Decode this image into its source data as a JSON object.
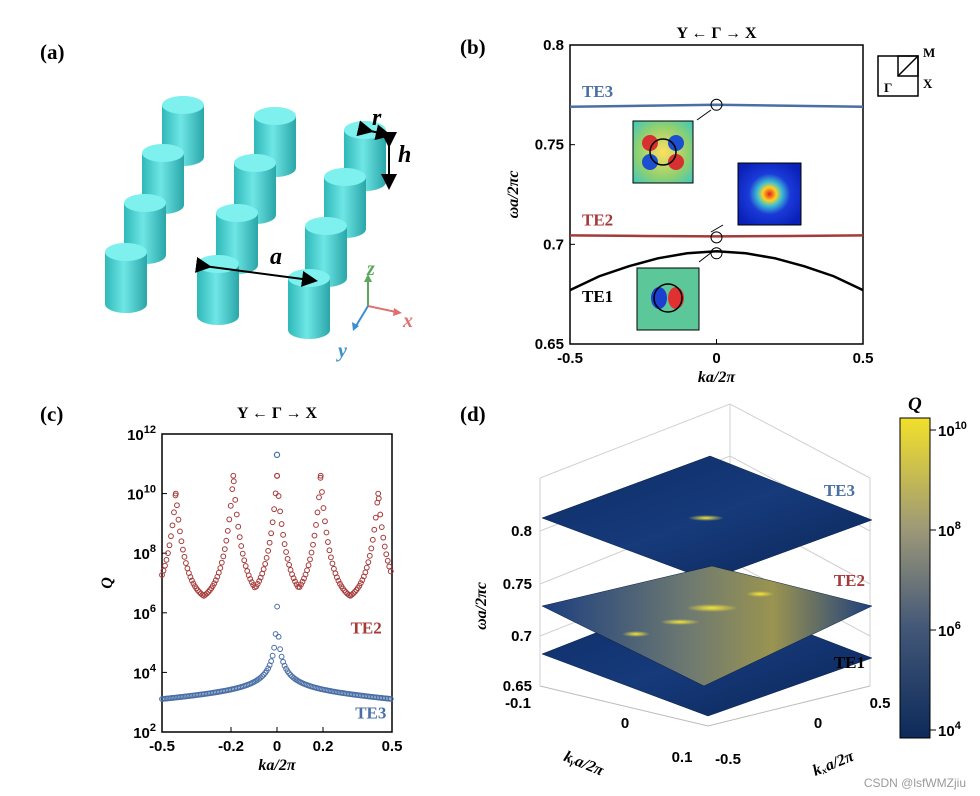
{
  "panels": {
    "a": {
      "label": "(a)",
      "lattice_labels": {
        "r": "r",
        "h": "h",
        "a": "a",
        "x": "x",
        "y": "y",
        "z": "z"
      }
    },
    "b": {
      "label": "(b)"
    },
    "c": {
      "label": "(c)"
    },
    "d": {
      "label": "(d)"
    }
  },
  "bz_inset": {
    "M": "M",
    "X": "X",
    "Gamma": "Γ"
  },
  "watermark": "CSDN @lsfWMZjiu",
  "chart_data": [
    {
      "id": "b",
      "type": "line",
      "title": "Y ← Γ → X",
      "xlabel": "ka/2π",
      "ylabel": "ωa/2πc",
      "xlim": [
        -0.5,
        0.5
      ],
      "ylim": [
        0.65,
        0.8
      ],
      "xticks": [
        "-0.5",
        "0",
        "0.5"
      ],
      "yticks": [
        "0.65",
        "0.7",
        "0.75",
        "0.8"
      ],
      "series": [
        {
          "name": "TE3",
          "color": "#4a6fa5",
          "x": [
            -0.5,
            -0.25,
            0,
            0.25,
            0.5
          ],
          "y": [
            0.769,
            0.7695,
            0.77,
            0.7695,
            0.769
          ]
        },
        {
          "name": "TE2",
          "color": "#a53a3a",
          "x": [
            -0.5,
            -0.25,
            0,
            0.25,
            0.5
          ],
          "y": [
            0.7045,
            0.7042,
            0.704,
            0.7042,
            0.7045
          ]
        },
        {
          "name": "TE1",
          "color": "#000000",
          "x": [
            -0.5,
            -0.4,
            -0.3,
            -0.2,
            -0.1,
            0,
            0.1,
            0.2,
            0.3,
            0.4,
            0.5
          ],
          "y": [
            0.677,
            0.684,
            0.689,
            0.693,
            0.6955,
            0.6965,
            0.6955,
            0.693,
            0.689,
            0.684,
            0.677
          ]
        }
      ],
      "markers_at_gamma": [
        0.77,
        0.7035,
        0.6955
      ],
      "mode_insets": [
        "TE3",
        "TE2",
        "TE1"
      ]
    },
    {
      "id": "c",
      "type": "scatter",
      "title": "Y ← Γ → X",
      "xlabel": "ka/2π",
      "ylabel": "Q",
      "xlim": [
        -0.5,
        0.5
      ],
      "ylim_log10": [
        2,
        12
      ],
      "xticks": [
        "-0.5",
        "-0.2",
        "0",
        "0.2",
        "0.5"
      ],
      "yticks_log10": [
        2,
        4,
        6,
        8,
        10,
        12
      ],
      "ytick_base": "10",
      "series": [
        {
          "name": "TE2",
          "color": "#a53a3a",
          "peaks_k": [
            -0.44,
            -0.19,
            0,
            0.19,
            0.44
          ],
          "peaks_log10Q": [
            10,
            10.6,
            10.6,
            10.6,
            10
          ],
          "floor_log10Q": 6.3
        },
        {
          "name": "TE3",
          "color": "#4a6fa5",
          "peak_k": 0,
          "peak_log10Q": 11.3,
          "floor_log10Q": 3
        }
      ]
    },
    {
      "id": "d",
      "type": "heatmap",
      "title": "",
      "zlabel": "ωa/2πc",
      "xlabel": "kₓa/2π",
      "ylabel": "kᵧa/2π",
      "zticks": [
        "0.65",
        "0.7",
        "0.75",
        "0.8"
      ],
      "xticks": [
        "-0.5",
        "0",
        "0.5"
      ],
      "yticks": [
        "-0.1",
        "0",
        "0.1"
      ],
      "surfaces": [
        "TE3",
        "TE2",
        "TE1"
      ],
      "colorbar": {
        "label": "Q",
        "ticks_log10": [
          4,
          6,
          8,
          10
        ],
        "base": "10",
        "low_color": "#0c2a5a",
        "high_color": "#f2e02a"
      }
    }
  ]
}
